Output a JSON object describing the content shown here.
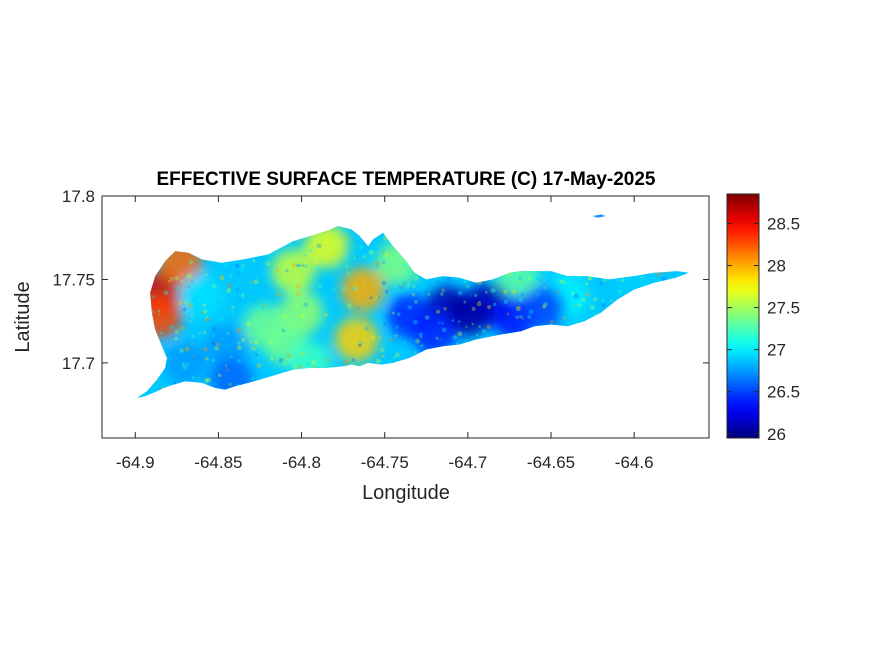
{
  "chart_data": {
    "type": "heatmap",
    "title": "EFFECTIVE SURFACE TEMPERATURE (C) 17-May-2025",
    "xlabel": "Longitude",
    "ylabel": "Latitude",
    "xlim": [
      -64.92,
      -64.555
    ],
    "ylim": [
      17.655,
      17.8
    ],
    "x_ticks": [
      -64.9,
      -64.85,
      -64.8,
      -64.75,
      -64.7,
      -64.65,
      -64.6
    ],
    "x_tick_labels": [
      "-64.9",
      "-64.85",
      "-64.8",
      "-64.75",
      "-64.7",
      "-64.65",
      "-64.6"
    ],
    "y_ticks": [
      17.7,
      17.75,
      17.8
    ],
    "y_tick_labels": [
      "17.7",
      "17.75",
      "17.8"
    ],
    "colorbar": {
      "colormap": "jet",
      "range": [
        25.95,
        28.85
      ],
      "ticks": [
        26,
        26.5,
        27,
        27.5,
        28,
        28.5
      ],
      "tick_labels": [
        "26",
        "26.5",
        "27",
        "27.5",
        "28",
        "28.5"
      ],
      "location": "right"
    },
    "grid": false,
    "island_outline": [
      [
        -64.899,
        17.679
      ],
      [
        -64.893,
        17.683
      ],
      [
        -64.887,
        17.69
      ],
      [
        -64.882,
        17.697
      ],
      [
        -64.881,
        17.703
      ],
      [
        -64.884,
        17.71
      ],
      [
        -64.888,
        17.72
      ],
      [
        -64.89,
        17.73
      ],
      [
        -64.891,
        17.742
      ],
      [
        -64.888,
        17.752
      ],
      [
        -64.882,
        17.761
      ],
      [
        -64.876,
        17.767
      ],
      [
        -64.868,
        17.766
      ],
      [
        -64.86,
        17.762
      ],
      [
        -64.848,
        17.76
      ],
      [
        -64.835,
        17.762
      ],
      [
        -64.82,
        17.765
      ],
      [
        -64.805,
        17.773
      ],
      [
        -64.795,
        17.776
      ],
      [
        -64.785,
        17.779
      ],
      [
        -64.778,
        17.782
      ],
      [
        -64.77,
        17.78
      ],
      [
        -64.765,
        17.776
      ],
      [
        -64.76,
        17.77
      ],
      [
        -64.757,
        17.774
      ],
      [
        -64.751,
        17.778
      ],
      [
        -64.745,
        17.77
      ],
      [
        -64.738,
        17.762
      ],
      [
        -64.732,
        17.754
      ],
      [
        -64.725,
        17.75
      ],
      [
        -64.715,
        17.752
      ],
      [
        -64.705,
        17.751
      ],
      [
        -64.695,
        17.748
      ],
      [
        -64.685,
        17.75
      ],
      [
        -64.675,
        17.754
      ],
      [
        -64.668,
        17.755
      ],
      [
        -64.66,
        17.755
      ],
      [
        -64.65,
        17.755
      ],
      [
        -64.64,
        17.752
      ],
      [
        -64.628,
        17.752
      ],
      [
        -64.615,
        17.75
      ],
      [
        -64.6,
        17.752
      ],
      [
        -64.588,
        17.754
      ],
      [
        -64.574,
        17.755
      ],
      [
        -64.567,
        17.754
      ],
      [
        -64.575,
        17.751
      ],
      [
        -64.588,
        17.748
      ],
      [
        -64.6,
        17.744
      ],
      [
        -64.61,
        17.738
      ],
      [
        -64.62,
        17.73
      ],
      [
        -64.63,
        17.725
      ],
      [
        -64.64,
        17.722
      ],
      [
        -64.65,
        17.723
      ],
      [
        -64.66,
        17.722
      ],
      [
        -64.668,
        17.719
      ],
      [
        -64.68,
        17.717
      ],
      [
        -64.695,
        17.714
      ],
      [
        -64.705,
        17.711
      ],
      [
        -64.715,
        17.71
      ],
      [
        -64.725,
        17.708
      ],
      [
        -64.735,
        17.703
      ],
      [
        -64.745,
        17.7
      ],
      [
        -64.752,
        17.699
      ],
      [
        -64.76,
        17.7
      ],
      [
        -64.765,
        17.698
      ],
      [
        -64.77,
        17.699
      ],
      [
        -64.775,
        17.698
      ],
      [
        -64.785,
        17.697
      ],
      [
        -64.795,
        17.697
      ],
      [
        -64.805,
        17.696
      ],
      [
        -64.815,
        17.693
      ],
      [
        -64.825,
        17.69
      ],
      [
        -64.832,
        17.688
      ],
      [
        -64.84,
        17.686
      ],
      [
        -64.846,
        17.684
      ],
      [
        -64.852,
        17.685
      ],
      [
        -64.86,
        17.688
      ],
      [
        -64.87,
        17.689
      ],
      [
        -64.88,
        17.686
      ],
      [
        -64.887,
        17.683
      ],
      [
        -64.894,
        17.68
      ]
    ],
    "islet_outline": [
      [
        -64.625,
        17.788
      ],
      [
        -64.62,
        17.789
      ],
      [
        -64.617,
        17.788
      ],
      [
        -64.622,
        17.787
      ]
    ],
    "hotspots": [
      {
        "lon": -64.886,
        "lat": 17.742,
        "value": 28.6
      },
      {
        "lon": -64.885,
        "lat": 17.728,
        "value": 28.3
      },
      {
        "lon": -64.873,
        "lat": 17.76,
        "value": 28.2
      },
      {
        "lon": -64.763,
        "lat": 17.744,
        "value": 28.0
      },
      {
        "lon": -64.767,
        "lat": 17.714,
        "value": 27.9
      },
      {
        "lon": -64.785,
        "lat": 17.77,
        "value": 27.7
      },
      {
        "lon": -64.805,
        "lat": 17.755,
        "value": 27.6
      },
      {
        "lon": -64.8,
        "lat": 17.73,
        "value": 27.45
      },
      {
        "lon": -64.822,
        "lat": 17.722,
        "value": 27.35
      },
      {
        "lon": -64.81,
        "lat": 17.712,
        "value": 27.35
      },
      {
        "lon": -64.795,
        "lat": 17.7,
        "value": 27.2
      },
      {
        "lon": -64.742,
        "lat": 17.76,
        "value": 27.4
      },
      {
        "lon": -64.67,
        "lat": 17.75,
        "value": 27.3
      },
      {
        "lon": -64.64,
        "lat": 17.74,
        "value": 27.0
      },
      {
        "lon": -64.598,
        "lat": 17.75,
        "value": 26.9
      },
      {
        "lon": -64.86,
        "lat": 17.74,
        "value": 26.95
      },
      {
        "lon": -64.845,
        "lat": 17.71,
        "value": 26.75
      },
      {
        "lon": -64.87,
        "lat": 17.7,
        "value": 26.75
      },
      {
        "lon": -64.842,
        "lat": 17.69,
        "value": 26.6
      },
      {
        "lon": -64.735,
        "lat": 17.728,
        "value": 26.4
      },
      {
        "lon": -64.712,
        "lat": 17.733,
        "value": 26.1
      },
      {
        "lon": -64.7,
        "lat": 17.729,
        "value": 26.05
      },
      {
        "lon": -64.688,
        "lat": 17.735,
        "value": 26.1
      },
      {
        "lon": -64.72,
        "lat": 17.718,
        "value": 26.4
      },
      {
        "lon": -64.672,
        "lat": 17.727,
        "value": 26.35
      },
      {
        "lon": -64.655,
        "lat": 17.733,
        "value": 26.5
      }
    ]
  }
}
